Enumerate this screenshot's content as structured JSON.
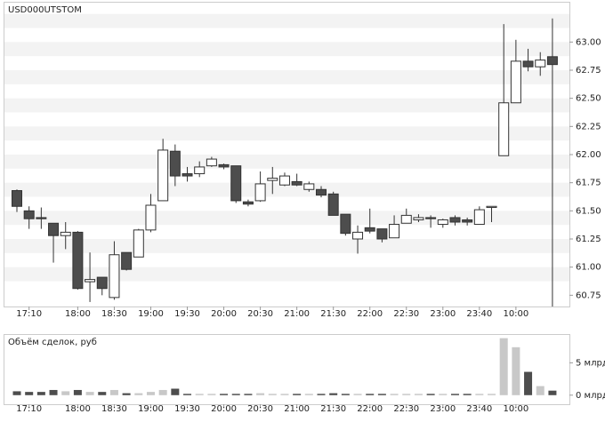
{
  "chart_data": [
    {
      "type": "candlestick",
      "title": "USD000UTSTOM",
      "categories": [
        null,
        "17:10",
        null,
        null,
        null,
        "18:00",
        null,
        null,
        "18:30",
        null,
        null,
        "19:00",
        null,
        null,
        "19:30",
        null,
        null,
        "20:00",
        null,
        null,
        "20:30",
        null,
        null,
        "21:00",
        null,
        null,
        "21:30",
        null,
        null,
        "22:00",
        null,
        null,
        "22:30",
        null,
        null,
        "23:00",
        null,
        null,
        "23:40",
        null,
        null,
        "10:00",
        null,
        null,
        null
      ],
      "open": [
        61.68,
        61.5,
        61.44,
        61.39,
        61.28,
        61.31,
        60.87,
        60.91,
        60.73,
        61.13,
        61.09,
        61.33,
        61.59,
        62.03,
        61.83,
        61.83,
        61.9,
        61.91,
        61.9,
        61.58,
        61.59,
        61.77,
        61.73,
        61.76,
        61.69,
        61.69,
        61.65,
        61.47,
        61.25,
        61.35,
        61.34,
        61.26,
        61.39,
        61.42,
        61.44,
        61.38,
        61.44,
        61.42,
        61.38,
        61.53,
        61.99,
        62.46,
        62.83,
        62.78,
        62.87
      ],
      "high": [
        61.69,
        61.54,
        61.53,
        61.39,
        61.4,
        61.32,
        61.13,
        60.91,
        61.23,
        61.13,
        61.34,
        61.65,
        62.14,
        62.09,
        61.89,
        61.94,
        61.98,
        61.92,
        61.9,
        61.6,
        61.85,
        61.89,
        61.84,
        61.83,
        61.76,
        61.72,
        61.67,
        61.47,
        61.37,
        61.52,
        61.34,
        61.46,
        61.52,
        61.47,
        61.46,
        61.43,
        61.46,
        61.44,
        61.54,
        61.54,
        63.16,
        63.02,
        62.94,
        62.91,
        63.21
      ],
      "low": [
        61.49,
        61.34,
        61.34,
        61.04,
        61.16,
        60.8,
        60.69,
        60.75,
        60.71,
        60.97,
        61.09,
        61.31,
        61.59,
        61.72,
        61.76,
        61.8,
        61.89,
        61.87,
        61.57,
        61.54,
        61.58,
        61.65,
        61.72,
        61.72,
        61.67,
        61.62,
        61.46,
        61.28,
        61.12,
        61.3,
        61.22,
        61.26,
        61.39,
        61.4,
        61.35,
        61.35,
        61.37,
        61.37,
        61.38,
        61.4,
        61.99,
        62.46,
        62.74,
        62.7,
        60.65
      ],
      "close": [
        61.54,
        61.43,
        61.43,
        61.28,
        61.31,
        60.81,
        60.89,
        60.81,
        61.11,
        60.98,
        61.33,
        61.55,
        62.04,
        61.81,
        61.81,
        61.89,
        61.96,
        61.89,
        61.59,
        61.56,
        61.74,
        61.79,
        61.81,
        61.73,
        61.74,
        61.64,
        61.46,
        61.3,
        61.31,
        61.32,
        61.25,
        61.38,
        61.46,
        61.44,
        61.43,
        61.42,
        61.4,
        61.4,
        61.51,
        61.54,
        62.46,
        62.83,
        62.78,
        62.84,
        62.8
      ],
      "up_color": "#ffffff",
      "down_color": "#4d4d4d",
      "ylim": [
        60.65,
        63.35
      ],
      "yticks": [
        {
          "value": 60.75,
          "label": "60.75"
        },
        {
          "value": 61,
          "label": "61.00"
        },
        {
          "value": 61.25,
          "label": "61.25"
        },
        {
          "value": 61.5,
          "label": "61.50"
        },
        {
          "value": 61.75,
          "label": "61.75"
        },
        {
          "value": 62,
          "label": "62.00"
        },
        {
          "value": 62.25,
          "label": "62.25"
        },
        {
          "value": 62.5,
          "label": "62.50"
        },
        {
          "value": 62.75,
          "label": "62.75"
        },
        {
          "value": 63,
          "label": "63.00"
        }
      ]
    },
    {
      "type": "bar",
      "title": "Объём сделок, руб",
      "categories": [
        null,
        "17:10",
        null,
        null,
        null,
        "18:00",
        null,
        null,
        "18:30",
        null,
        null,
        "19:00",
        null,
        null,
        "19:30",
        null,
        null,
        "20:00",
        null,
        null,
        "20:30",
        null,
        null,
        "21:00",
        null,
        null,
        "21:30",
        null,
        null,
        "22:00",
        null,
        null,
        "22:30",
        null,
        null,
        "23:00",
        null,
        null,
        "23:40",
        null,
        null,
        "10:00",
        null,
        null,
        null
      ],
      "values": [
        0.6,
        0.5,
        0.5,
        0.8,
        0.6,
        0.8,
        0.5,
        0.5,
        0.8,
        0.3,
        0.3,
        0.5,
        0.8,
        1.0,
        0.2,
        0.2,
        0.2,
        0.2,
        0.2,
        0.2,
        0.3,
        0.2,
        0.2,
        0.2,
        0.2,
        0.2,
        0.3,
        0.2,
        0.2,
        0.2,
        0.2,
        0.2,
        0.2,
        0.2,
        0.2,
        0.2,
        0.2,
        0.2,
        0.2,
        0.2,
        8.8,
        7.4,
        3.6,
        1.4,
        0.7
      ],
      "up_color": "#c8c8c8",
      "down_color": "#4d4d4d",
      "ylim": [
        -1.4,
        9.3
      ],
      "yticks": [
        {
          "value": 0,
          "label": "0 млрд"
        },
        {
          "value": 5,
          "label": "5 млрд"
        }
      ]
    }
  ]
}
